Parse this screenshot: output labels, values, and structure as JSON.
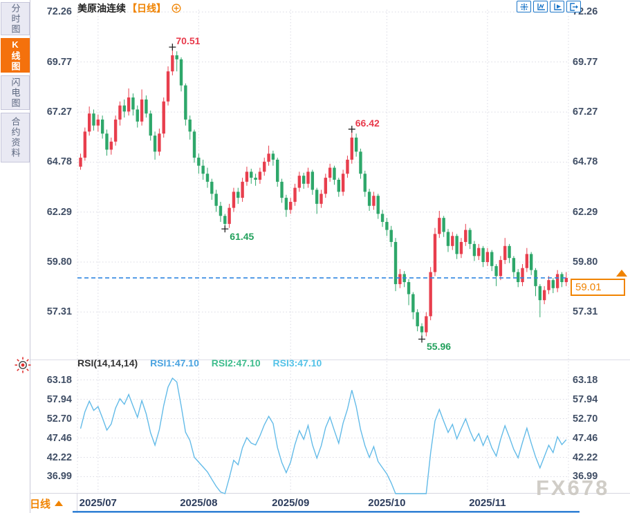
{
  "header": {
    "symbol": "美原油连续",
    "timeframe_label": "【日线】",
    "toolbar_icons": [
      "crosshair-move",
      "axis-range",
      "axis-play",
      "pan-right"
    ]
  },
  "sidebar": {
    "tabs": [
      {
        "label": "分时图",
        "active": false
      },
      {
        "label": "K线图",
        "active": true
      },
      {
        "label": "闪电图",
        "active": false
      },
      {
        "label": "合约资料",
        "active": false
      }
    ]
  },
  "bottom_bar": {
    "timeframe": "日线"
  },
  "watermark": "FX678",
  "price_marker": {
    "value": "59.01",
    "color": "#f08300"
  },
  "colors": {
    "up": "#e83e4d",
    "down": "#2ea76a",
    "accent_orange": "#f08300",
    "dashed_line": "#2f86e0",
    "rsi_line": "#63bbe8",
    "scrollbar": "#2e7fd4"
  },
  "chart_data": [
    {
      "type": "candlestick",
      "title": "美原油连续【日线】",
      "timeframe": "日线",
      "ylim": [
        55.5,
        72.8
      ],
      "y_ticks": [
        "72.26",
        "69.77",
        "67.27",
        "64.78",
        "62.29",
        "59.80",
        "57.31"
      ],
      "x_ticks": [
        {
          "label": "2025/07",
          "candle": 4
        },
        {
          "label": "2025/08",
          "candle": 27
        },
        {
          "label": "2025/09",
          "candle": 48
        },
        {
          "label": "2025/10",
          "candle": 70
        },
        {
          "label": "2025/11",
          "candle": 93
        }
      ],
      "last_price": 59.01,
      "annotations": [
        {
          "candle": 21,
          "price": 70.51,
          "text": "70.51",
          "type": "high"
        },
        {
          "candle": 33,
          "price": 61.45,
          "text": "61.45",
          "type": "low"
        },
        {
          "candle": 62,
          "price": 66.42,
          "text": "66.42",
          "type": "high"
        },
        {
          "candle": 78,
          "price": 55.96,
          "text": "55.96",
          "type": "low"
        }
      ],
      "up_color": "#e83e4d",
      "down_color": "#2ea76a",
      "candles_ohlc": [
        [
          64.55,
          65.2,
          64.4,
          65.0
        ],
        [
          65.0,
          66.5,
          64.85,
          66.3
        ],
        [
          66.3,
          67.55,
          66.1,
          67.2
        ],
        [
          67.2,
          67.4,
          66.35,
          66.6
        ],
        [
          66.6,
          67.15,
          66.3,
          66.9
        ],
        [
          66.9,
          67.1,
          65.95,
          66.2
        ],
        [
          66.2,
          66.4,
          65.1,
          65.4
        ],
        [
          65.4,
          66.0,
          65.15,
          65.8
        ],
        [
          65.8,
          67.1,
          65.6,
          66.9
        ],
        [
          66.9,
          67.8,
          66.6,
          67.6
        ],
        [
          67.6,
          67.9,
          67.0,
          67.3
        ],
        [
          67.3,
          68.45,
          67.1,
          68.0
        ],
        [
          68.0,
          68.2,
          67.1,
          67.4
        ],
        [
          67.4,
          67.6,
          66.5,
          66.8
        ],
        [
          66.8,
          68.4,
          66.6,
          67.9
        ],
        [
          67.9,
          68.1,
          67.0,
          67.2
        ],
        [
          67.2,
          67.35,
          65.85,
          66.1
        ],
        [
          66.1,
          66.3,
          64.9,
          65.3
        ],
        [
          65.3,
          66.45,
          65.1,
          66.2
        ],
        [
          66.2,
          68.0,
          66.0,
          67.8
        ],
        [
          67.8,
          69.55,
          67.6,
          69.3
        ],
        [
          69.3,
          70.51,
          69.1,
          70.1
        ],
        [
          70.1,
          70.3,
          69.3,
          69.9
        ],
        [
          69.9,
          70.0,
          68.3,
          68.6
        ],
        [
          68.6,
          68.7,
          66.6,
          66.9
        ],
        [
          66.9,
          67.1,
          65.9,
          66.3
        ],
        [
          66.3,
          66.4,
          64.75,
          65.0
        ],
        [
          65.0,
          65.2,
          64.2,
          64.6
        ],
        [
          64.6,
          64.9,
          63.9,
          64.2
        ],
        [
          64.2,
          64.5,
          63.5,
          63.8
        ],
        [
          63.8,
          63.95,
          62.9,
          63.2
        ],
        [
          63.2,
          63.4,
          62.3,
          62.6
        ],
        [
          62.6,
          62.8,
          61.8,
          62.1
        ],
        [
          62.1,
          62.2,
          61.45,
          61.7
        ],
        [
          61.7,
          62.7,
          61.5,
          62.5
        ],
        [
          62.5,
          63.5,
          62.3,
          63.3
        ],
        [
          63.3,
          63.5,
          62.7,
          63.0
        ],
        [
          63.0,
          64.0,
          62.8,
          63.8
        ],
        [
          63.8,
          64.55,
          63.6,
          64.3
        ],
        [
          64.3,
          64.45,
          63.7,
          64.0
        ],
        [
          64.0,
          64.2,
          63.6,
          63.9
        ],
        [
          63.9,
          64.5,
          63.7,
          64.3
        ],
        [
          64.3,
          65.0,
          64.1,
          64.8
        ],
        [
          64.8,
          65.6,
          64.6,
          65.2
        ],
        [
          65.2,
          65.35,
          64.6,
          64.9
        ],
        [
          64.9,
          65.0,
          63.55,
          63.8
        ],
        [
          63.8,
          63.95,
          62.75,
          63.0
        ],
        [
          63.0,
          63.15,
          62.05,
          62.4
        ],
        [
          62.4,
          63.0,
          62.2,
          62.8
        ],
        [
          62.8,
          63.7,
          62.6,
          63.5
        ],
        [
          63.5,
          64.3,
          63.3,
          64.1
        ],
        [
          64.1,
          64.25,
          63.45,
          63.7
        ],
        [
          63.7,
          64.5,
          63.5,
          64.3
        ],
        [
          64.3,
          64.4,
          63.15,
          63.4
        ],
        [
          63.4,
          63.5,
          62.2,
          62.7
        ],
        [
          62.7,
          63.4,
          62.5,
          63.2
        ],
        [
          63.2,
          64.2,
          63.0,
          64.0
        ],
        [
          64.0,
          64.7,
          63.8,
          64.5
        ],
        [
          64.5,
          64.6,
          63.65,
          63.9
        ],
        [
          63.9,
          64.0,
          63.05,
          63.3
        ],
        [
          63.3,
          64.4,
          63.1,
          64.2
        ],
        [
          64.2,
          65.1,
          64.0,
          64.9
        ],
        [
          64.9,
          66.42,
          64.7,
          66.0
        ],
        [
          66.0,
          66.2,
          65.05,
          65.3
        ],
        [
          65.3,
          65.45,
          63.95,
          64.2
        ],
        [
          64.2,
          64.35,
          63.05,
          63.3
        ],
        [
          63.3,
          63.45,
          62.35,
          62.6
        ],
        [
          62.6,
          63.3,
          62.4,
          63.1
        ],
        [
          63.1,
          63.2,
          61.95,
          62.2
        ],
        [
          62.2,
          62.4,
          61.55,
          61.8
        ],
        [
          61.8,
          62.0,
          61.1,
          61.4
        ],
        [
          61.4,
          61.6,
          60.55,
          60.8
        ],
        [
          60.8,
          61.0,
          58.35,
          58.7
        ],
        [
          58.7,
          59.45,
          58.5,
          59.2
        ],
        [
          59.2,
          59.35,
          58.55,
          58.8
        ],
        [
          58.8,
          58.95,
          57.65,
          58.2
        ],
        [
          58.2,
          58.3,
          56.95,
          57.3
        ],
        [
          57.3,
          57.45,
          56.35,
          56.6
        ],
        [
          56.6,
          56.75,
          55.96,
          56.3
        ],
        [
          56.3,
          57.3,
          56.1,
          57.1
        ],
        [
          57.1,
          59.55,
          56.9,
          59.3
        ],
        [
          59.3,
          61.5,
          59.1,
          61.2
        ],
        [
          61.2,
          62.35,
          61.0,
          62.0
        ],
        [
          62.0,
          62.1,
          61.05,
          61.3
        ],
        [
          61.3,
          61.45,
          60.3,
          60.6
        ],
        [
          60.6,
          61.3,
          60.4,
          61.1
        ],
        [
          61.1,
          61.2,
          59.95,
          60.2
        ],
        [
          60.2,
          61.0,
          60.0,
          60.8
        ],
        [
          60.8,
          61.7,
          60.6,
          61.4
        ],
        [
          61.4,
          61.5,
          60.45,
          60.7
        ],
        [
          60.7,
          60.85,
          59.85,
          60.1
        ],
        [
          60.1,
          60.7,
          59.9,
          60.5
        ],
        [
          60.5,
          60.6,
          59.55,
          59.8
        ],
        [
          59.8,
          60.5,
          59.6,
          60.3
        ],
        [
          60.3,
          60.4,
          59.35,
          59.6
        ],
        [
          59.6,
          59.7,
          58.6,
          59.1
        ],
        [
          59.1,
          60.1,
          58.9,
          59.9
        ],
        [
          59.9,
          61.0,
          59.7,
          60.6
        ],
        [
          60.6,
          60.7,
          59.75,
          60.0
        ],
        [
          60.0,
          60.1,
          59.05,
          59.3
        ],
        [
          59.3,
          59.45,
          58.55,
          58.8
        ],
        [
          58.8,
          59.7,
          58.6,
          59.5
        ],
        [
          59.5,
          60.5,
          59.3,
          60.2
        ],
        [
          60.2,
          60.3,
          59.15,
          59.4
        ],
        [
          59.4,
          59.5,
          58.1,
          58.6
        ],
        [
          58.6,
          58.7,
          57.05,
          57.9
        ],
        [
          57.9,
          58.6,
          57.7,
          58.4
        ],
        [
          58.4,
          59.1,
          58.2,
          58.9
        ],
        [
          58.9,
          59.0,
          58.25,
          58.5
        ],
        [
          58.5,
          59.4,
          58.3,
          59.2
        ],
        [
          59.2,
          59.3,
          58.55,
          58.8
        ],
        [
          58.8,
          59.3,
          58.6,
          59.01
        ]
      ]
    },
    {
      "type": "line",
      "title": "RSI(14,14,14)",
      "legend": [
        "RSI1:47.10",
        "RSI2:47.10",
        "RSI3:47.10"
      ],
      "legend_colors": [
        "#4aa3e0",
        "#3fbd8d",
        "#55c3e8"
      ],
      "y_ticks": [
        "63.18",
        "57.94",
        "52.70",
        "47.46",
        "42.22",
        "36.99"
      ],
      "derived_from": "RSI(14) of candlestick closes",
      "line_color": "#63bbe8"
    }
  ]
}
